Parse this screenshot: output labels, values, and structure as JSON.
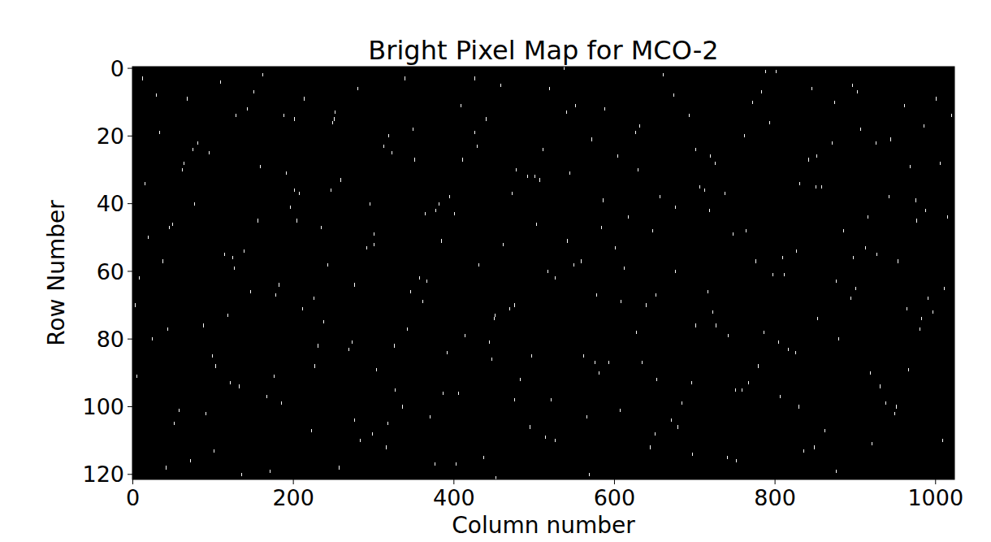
{
  "chart_data": {
    "type": "image",
    "title": "Bright Pixel Map for MCO-2",
    "x_label": "Column number",
    "y_label": "Row Number",
    "color": "#ffffff",
    "xlim": [
      -0.5,
      1023.5
    ],
    "ylim": [
      121.5,
      -0.5
    ],
    "xticks": [
      0,
      200,
      400,
      600,
      800,
      1000
    ],
    "yticks": [
      0,
      20,
      40,
      60,
      80,
      100,
      120
    ],
    "x": [
      12,
      37,
      58,
      81,
      103,
      129,
      147,
      171,
      196,
      214,
      238,
      259,
      283,
      301,
      327,
      349,
      366,
      392,
      411,
      437,
      458,
      476,
      503,
      521,
      544,
      569,
      588,
      612,
      634,
      657,
      679,
      701,
      722,
      748,
      767,
      793,
      812,
      836,
      858,
      879,
      903,
      927,
      949,
      968,
      991,
      1015,
      5,
      29,
      46,
      72,
      95,
      118,
      139,
      162,
      185,
      207,
      231,
      252,
      276,
      298,
      319,
      342,
      364,
      387,
      409,
      431,
      452,
      478,
      497,
      519,
      541,
      566,
      586,
      608,
      631,
      653,
      676,
      697,
      719,
      742,
      764,
      788,
      806,
      831,
      853,
      874,
      898,
      921,
      944,
      966,
      988,
      1011,
      19,
      41,
      64,
      88,
      109,
      133,
      156,
      178,
      201,
      223,
      247,
      269,
      291,
      313,
      336,
      357,
      381,
      403,
      426,
      447,
      469,
      492,
      514,
      537,
      559,
      581,
      604,
      627,
      648,
      671,
      693,
      716,
      738,
      759,
      783,
      804,
      827,
      849,
      871,
      894,
      916,
      938,
      961,
      983,
      1006,
      8,
      33,
      52,
      77,
      99,
      124,
      143,
      167,
      191,
      211,
      235,
      257,
      280,
      304,
      323,
      346,
      370,
      395,
      414,
      440,
      461,
      483,
      507,
      526,
      549,
      572,
      593,
      617,
      639,
      661,
      684,
      706,
      727,
      752,
      772,
      797,
      817,
      842,
      862,
      885,
      907,
      931,
      953,
      975,
      997,
      1020,
      15,
      44,
      68,
      91,
      114,
      136,
      159,
      182,
      204,
      227,
      249,
      273,
      295,
      316,
      339,
      361,
      384,
      406,
      429,
      450,
      473,
      495,
      517,
      540,
      562,
      584,
      607,
      629,
      652,
      674,
      696,
      718,
      741,
      762,
      786,
      809,
      830,
      852,
      876,
      897,
      919,
      942,
      964,
      986,
      1009,
      24,
      50,
      75,
      101,
      126,
      151,
      176,
      201,
      226,
      251,
      276,
      301,
      326,
      351,
      376,
      401,
      426,
      451,
      476,
      501,
      526,
      551,
      576,
      601,
      626,
      651,
      676,
      701,
      726,
      751,
      776,
      801,
      826,
      851,
      876,
      901,
      926,
      951,
      976,
      1001,
      3,
      62,
      121,
      188,
      243,
      318,
      377,
      444,
      511,
      578,
      645,
      712,
      779,
      846,
      913,
      980
    ],
    "y": [
      3,
      57,
      101,
      22,
      88,
      14,
      66,
      119,
      41,
      9,
      75,
      33,
      110,
      52,
      95,
      18,
      63,
      84,
      27,
      115,
      5,
      70,
      46,
      98,
      31,
      120,
      12,
      59,
      87,
      38,
      106,
      24,
      72,
      49,
      93,
      16,
      61,
      113,
      35,
      80,
      7,
      55,
      102,
      29,
      68,
      44,
      91,
      8,
      47,
      116,
      25,
      73,
      54,
      2,
      99,
      37,
      82,
      13,
      64,
      108,
      20,
      77,
      43,
      96,
      11,
      58,
      121,
      30,
      85,
      6,
      51,
      103,
      39,
      69,
      17,
      92,
      60,
      114,
      26,
      79,
      48,
      1,
      97,
      34,
      74,
      10,
      56,
      111,
      21,
      89,
      42,
      65,
      50,
      118,
      28,
      76,
      4,
      94,
      45,
      67,
      15,
      107,
      36,
      83,
      53,
      23,
      100,
      62,
      40,
      117,
      19,
      86,
      71,
      32,
      109,
      0,
      57,
      90,
      26,
      78,
      48,
      104,
      14,
      66,
      37,
      95,
      7,
      81,
      54,
      112,
      22,
      68,
      44,
      99,
      11,
      74,
      28,
      62,
      19,
      105,
      40,
      85,
      56,
      12,
      97,
      31,
      71,
      47,
      118,
      6,
      89,
      25,
      66,
      103,
      38,
      79,
      15,
      52,
      92,
      33,
      110,
      58,
      21,
      87,
      44,
      70,
      2,
      99,
      35,
      76,
      116,
      10,
      61,
      83,
      27,
      107,
      48,
      18,
      94,
      57,
      39,
      72,
      14,
      34,
      77,
      9,
      102,
      55,
      120,
      29,
      64,
      45,
      88,
      16,
      81,
      40,
      112,
      3,
      69,
      51,
      96,
      23,
      74,
      37,
      106,
      60,
      13,
      85,
      47,
      101,
      30,
      67,
      8,
      93,
      42,
      115,
      20,
      78,
      56,
      100,
      26,
      63,
      5,
      90,
      38,
      71,
      17,
      110,
      80,
      46,
      24,
      113,
      59,
      7,
      91,
      36,
      68,
      15,
      104,
      49,
      82,
      27,
      117,
      43,
      3,
      73,
      98,
      32,
      62,
      11,
      87,
      53,
      19,
      108,
      41,
      76,
      28,
      95,
      57,
      1,
      84,
      35,
      119,
      65,
      22,
      100,
      45,
      9,
      70,
      30,
      93,
      14,
      58,
      105,
      42,
      81,
      24,
      67,
      112,
      36,
      88,
      6,
      53,
      77
    ]
  }
}
